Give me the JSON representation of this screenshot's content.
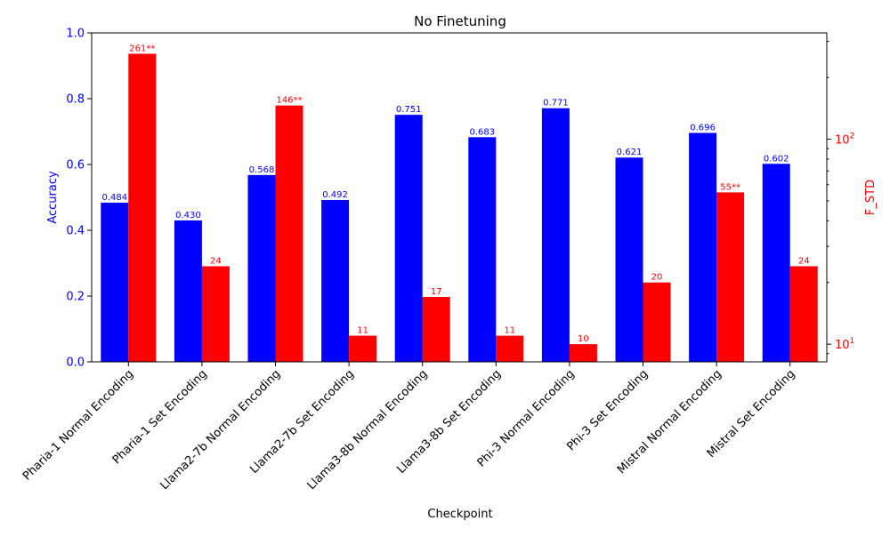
{
  "chart_data": {
    "type": "bar",
    "title": "No Finetuning",
    "xlabel": "Checkpoint",
    "ylabel_left": "Accuracy",
    "ylabel_right": "F_STD",
    "ylim_left": [
      0,
      1.0
    ],
    "ylim_right": [
      8.2,
      330
    ],
    "right_axis_scale": "log",
    "left_ticks": [
      "0.0",
      "0.2",
      "0.4",
      "0.6",
      "0.8",
      "1.0"
    ],
    "right_ticks": [
      {
        "base": "10",
        "exp": "1",
        "value": 10
      },
      {
        "base": "10",
        "exp": "2",
        "value": 100
      }
    ],
    "colors": {
      "accuracy": "#0000ff",
      "fstd": "#ff0000"
    },
    "grid": false,
    "categories": [
      "Pharia-1 Normal Encoding",
      "Pharia-1 Set Encoding",
      "Llama2-7b Normal Encoding",
      "Llama2-7b Set Encoding",
      "Llama3-8b Normal Encoding",
      "Llama3-8b Set Encoding",
      "Phi-3 Normal Encoding",
      "Phi-3 Set Encoding",
      "Mistral Normal Encoding",
      "Mistral Set Encoding"
    ],
    "series": [
      {
        "name": "Accuracy",
        "axis": "left",
        "values": [
          0.484,
          0.43,
          0.568,
          0.492,
          0.751,
          0.683,
          0.771,
          0.621,
          0.696,
          0.602
        ],
        "labels": [
          "0.484",
          "0.430",
          "0.568",
          "0.492",
          "0.751",
          "0.683",
          "0.771",
          "0.621",
          "0.696",
          "0.602"
        ]
      },
      {
        "name": "F_STD",
        "axis": "right",
        "values": [
          261,
          24,
          146,
          11,
          17,
          11,
          10,
          20,
          55,
          24
        ],
        "labels": [
          "261**",
          "24",
          "146**",
          "11",
          "17",
          "11",
          "10",
          "20",
          "55**",
          "24"
        ]
      }
    ]
  }
}
